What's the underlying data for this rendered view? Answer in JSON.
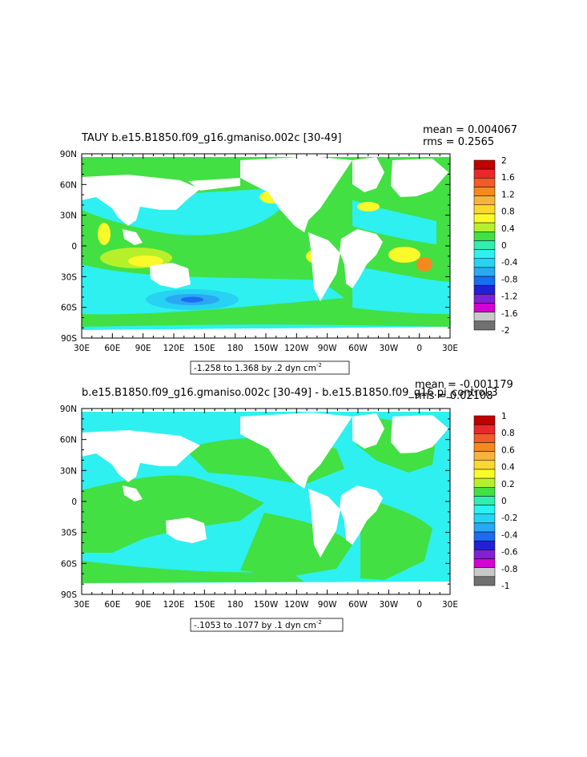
{
  "chart_data": [
    {
      "type": "heatmap",
      "title": "TAUY b.e15.B1850.f09_g16.gmaniso.002c [30-49]",
      "mean_label": "mean = 0.004067",
      "rms_label": "rms = 0.2565",
      "range_label": "-1.258 to 1.368 by .2 dyn cm",
      "range_exp": "-2",
      "x_ticks": [
        "30E",
        "60E",
        "90E",
        "120E",
        "150E",
        "180",
        "150W",
        "120W",
        "90W",
        "60W",
        "30W",
        "0",
        "30E"
      ],
      "y_ticks": [
        "90N",
        "60N",
        "30N",
        "0",
        "30S",
        "60S",
        "90S"
      ],
      "xlim": [
        30,
        390
      ],
      "ylim": [
        -90,
        90
      ],
      "colorbar": {
        "labels": [
          "2",
          "1.6",
          "1.2",
          "0.8",
          "0.4",
          "0",
          "-0.4",
          "-0.8",
          "-1.2",
          "-1.6",
          "-2"
        ],
        "colors": [
          "#c00000",
          "#e8282a",
          "#f25a2a",
          "#f5891e",
          "#f7b340",
          "#fbd82c",
          "#fafa2a",
          "#b6f02a",
          "#42e042",
          "#32ecb0",
          "#2ef0f0",
          "#28d2f2",
          "#2aa8f2",
          "#1a6cf0",
          "#2020d8",
          "#8020d8",
          "#d400d4",
          "#c8c8c8",
          "#707070"
        ],
        "boundaries": [
          2,
          1.8,
          1.6,
          1.4,
          1.2,
          1.0,
          0.8,
          0.6,
          0.4,
          0.2,
          0,
          -0.2,
          -0.4,
          -0.6,
          -0.8,
          -1.0,
          -1.2,
          -1.4,
          -1.6,
          -1.8,
          -2
        ]
      },
      "grid": false
    },
    {
      "type": "heatmap",
      "title": "b.e15.B1850.f09_g16.gmaniso.002c [30-49] - b.e15.B1850.f09_g16.pi_control.3",
      "mean_label": "mean = -0.001179",
      "rms_label": "rms = 0.02108",
      "range_label": "-.1053 to .1077 by .1 dyn cm",
      "range_exp": "-2",
      "x_ticks": [
        "30E",
        "60E",
        "90E",
        "120E",
        "150E",
        "180",
        "150W",
        "120W",
        "90W",
        "60W",
        "30W",
        "0",
        "30E"
      ],
      "y_ticks": [
        "90N",
        "60N",
        "30N",
        "0",
        "30S",
        "60S",
        "90S"
      ],
      "xlim": [
        30,
        390
      ],
      "ylim": [
        -90,
        90
      ],
      "colorbar": {
        "labels": [
          "1",
          "0.8",
          "0.6",
          "0.4",
          "0.2",
          "0",
          "-0.2",
          "-0.4",
          "-0.6",
          "-0.8",
          "-1"
        ],
        "colors": [
          "#c00000",
          "#e8282a",
          "#f25a2a",
          "#f5891e",
          "#f7b340",
          "#fbd82c",
          "#fafa2a",
          "#b6f02a",
          "#42e042",
          "#32ecb0",
          "#2ef0f0",
          "#28d2f2",
          "#2aa8f2",
          "#1a6cf0",
          "#2020d8",
          "#8020d8",
          "#d400d4",
          "#c8c8c8",
          "#707070"
        ],
        "boundaries": [
          1,
          0.9,
          0.8,
          0.7,
          0.6,
          0.5,
          0.4,
          0.3,
          0.2,
          0.1,
          0,
          -0.1,
          -0.2,
          -0.3,
          -0.4,
          -0.5,
          -0.6,
          -0.7,
          -0.8,
          -0.9,
          -1
        ]
      },
      "grid": false
    }
  ]
}
